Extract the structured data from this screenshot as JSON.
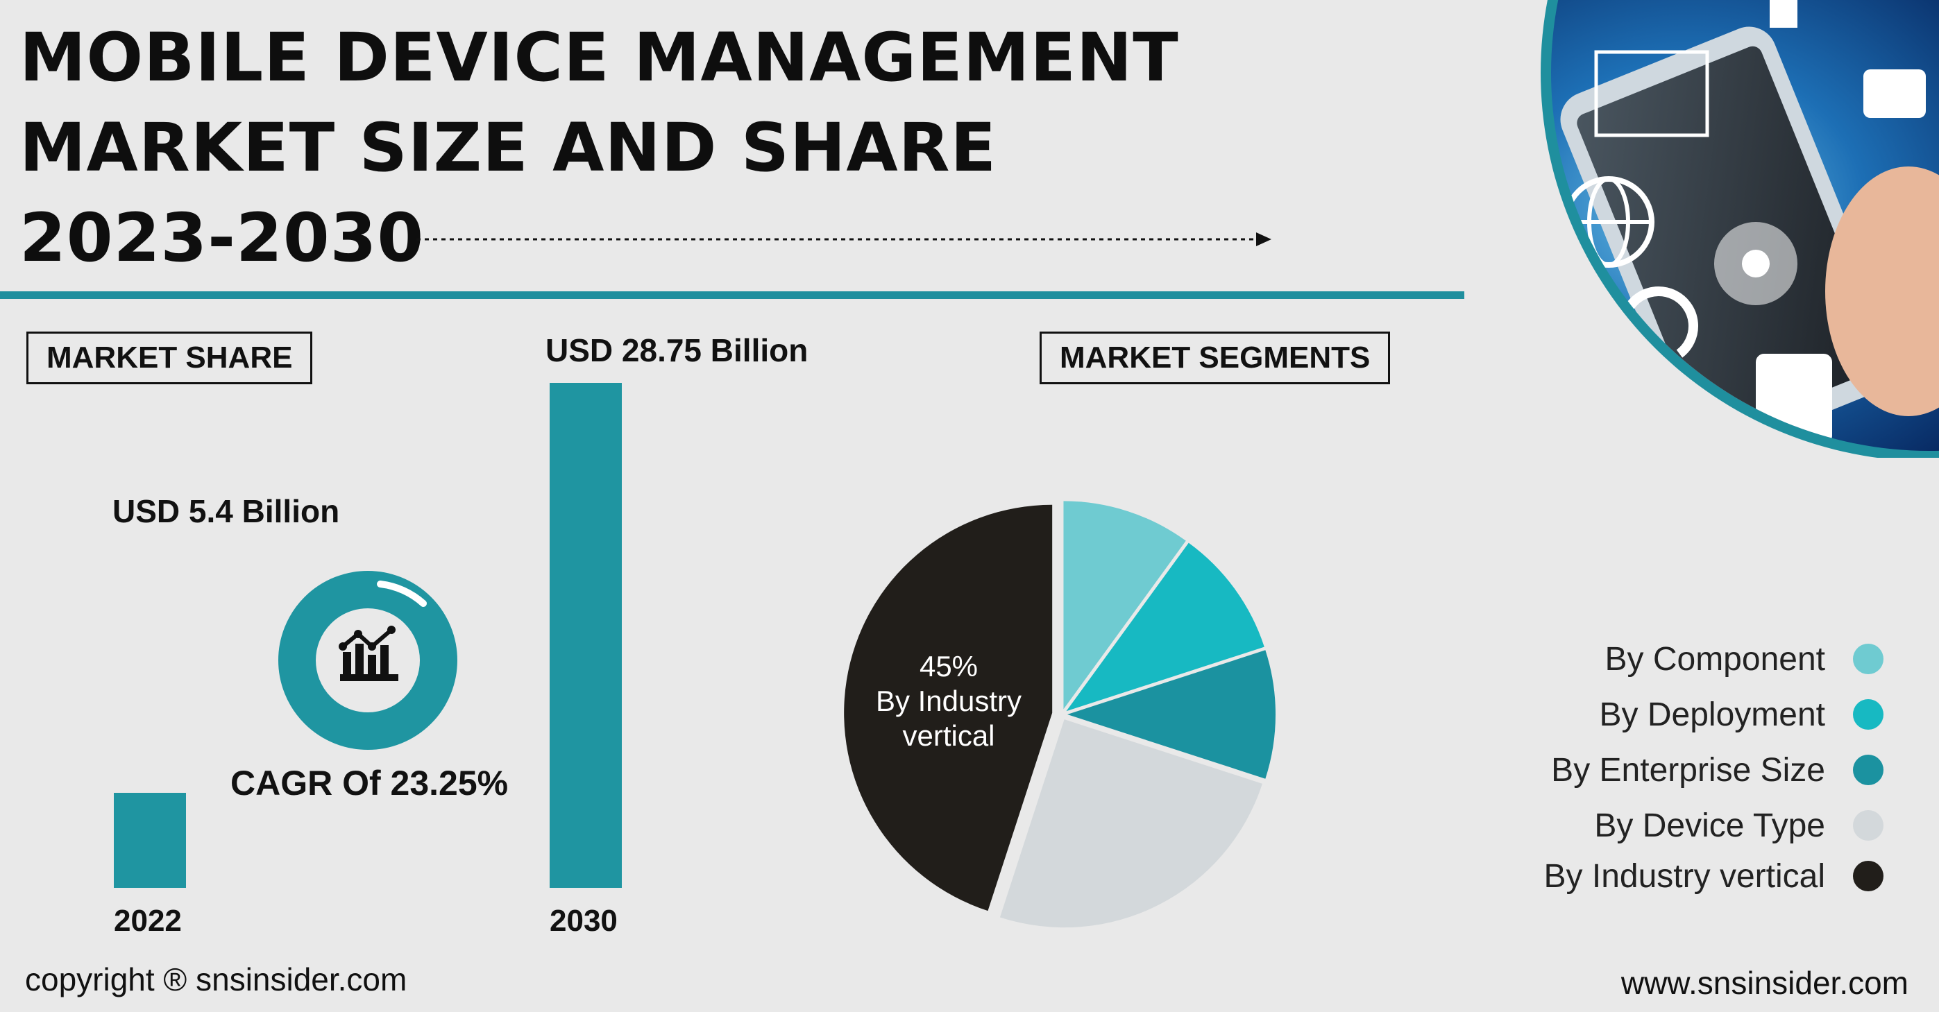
{
  "header": {
    "title_line1": "MOBILE DEVICE MANAGEMENT",
    "title_line2": "MARKET SIZE AND SHARE",
    "title_line3": "2023-2030"
  },
  "market_share": {
    "label": "MARKET SHARE",
    "cagr_label": "CAGR Of 23.25%",
    "bars": [
      {
        "year": "2022",
        "value_label": "USD 5.4 Billion"
      },
      {
        "year": "2030",
        "value_label": "USD 28.75 Billion"
      }
    ]
  },
  "market_segments": {
    "label": "MARKET SEGMENTS",
    "pie_label_pct": "45%",
    "pie_label_line1": "By Industry",
    "pie_label_line2": "vertical"
  },
  "colors": {
    "teal": "#1f95a1",
    "component": "#6fcbd1",
    "deployment": "#17b9c2",
    "enterprise": "#1b92a0",
    "device": "#d3d8db",
    "industry": "#211e1a"
  },
  "chart_data": [
    {
      "type": "bar",
      "categories": [
        "2022",
        "2030"
      ],
      "values": [
        5.4,
        28.75
      ],
      "data_labels": [
        "USD 5.4 Billion",
        "USD 28.75 Billion"
      ],
      "ylabel": "",
      "title": ""
    },
    {
      "type": "pie",
      "series": [
        {
          "name": "By Component",
          "value": 10,
          "color": "#6fcbd1"
        },
        {
          "name": "By Deployment",
          "value": 10,
          "color": "#17b9c2"
        },
        {
          "name": "By Enterprise Size",
          "value": 10,
          "color": "#1b92a0"
        },
        {
          "name": "By Device Type",
          "value": 25,
          "color": "#d3d8db"
        },
        {
          "name": "By Industry vertical",
          "value": 45,
          "color": "#211e1a"
        }
      ],
      "annotation": "45% By Industry vertical",
      "legend": "right"
    }
  ],
  "footer": {
    "copyright": "copyright ® snsinsider.com",
    "website": "www.snsinsider.com"
  }
}
